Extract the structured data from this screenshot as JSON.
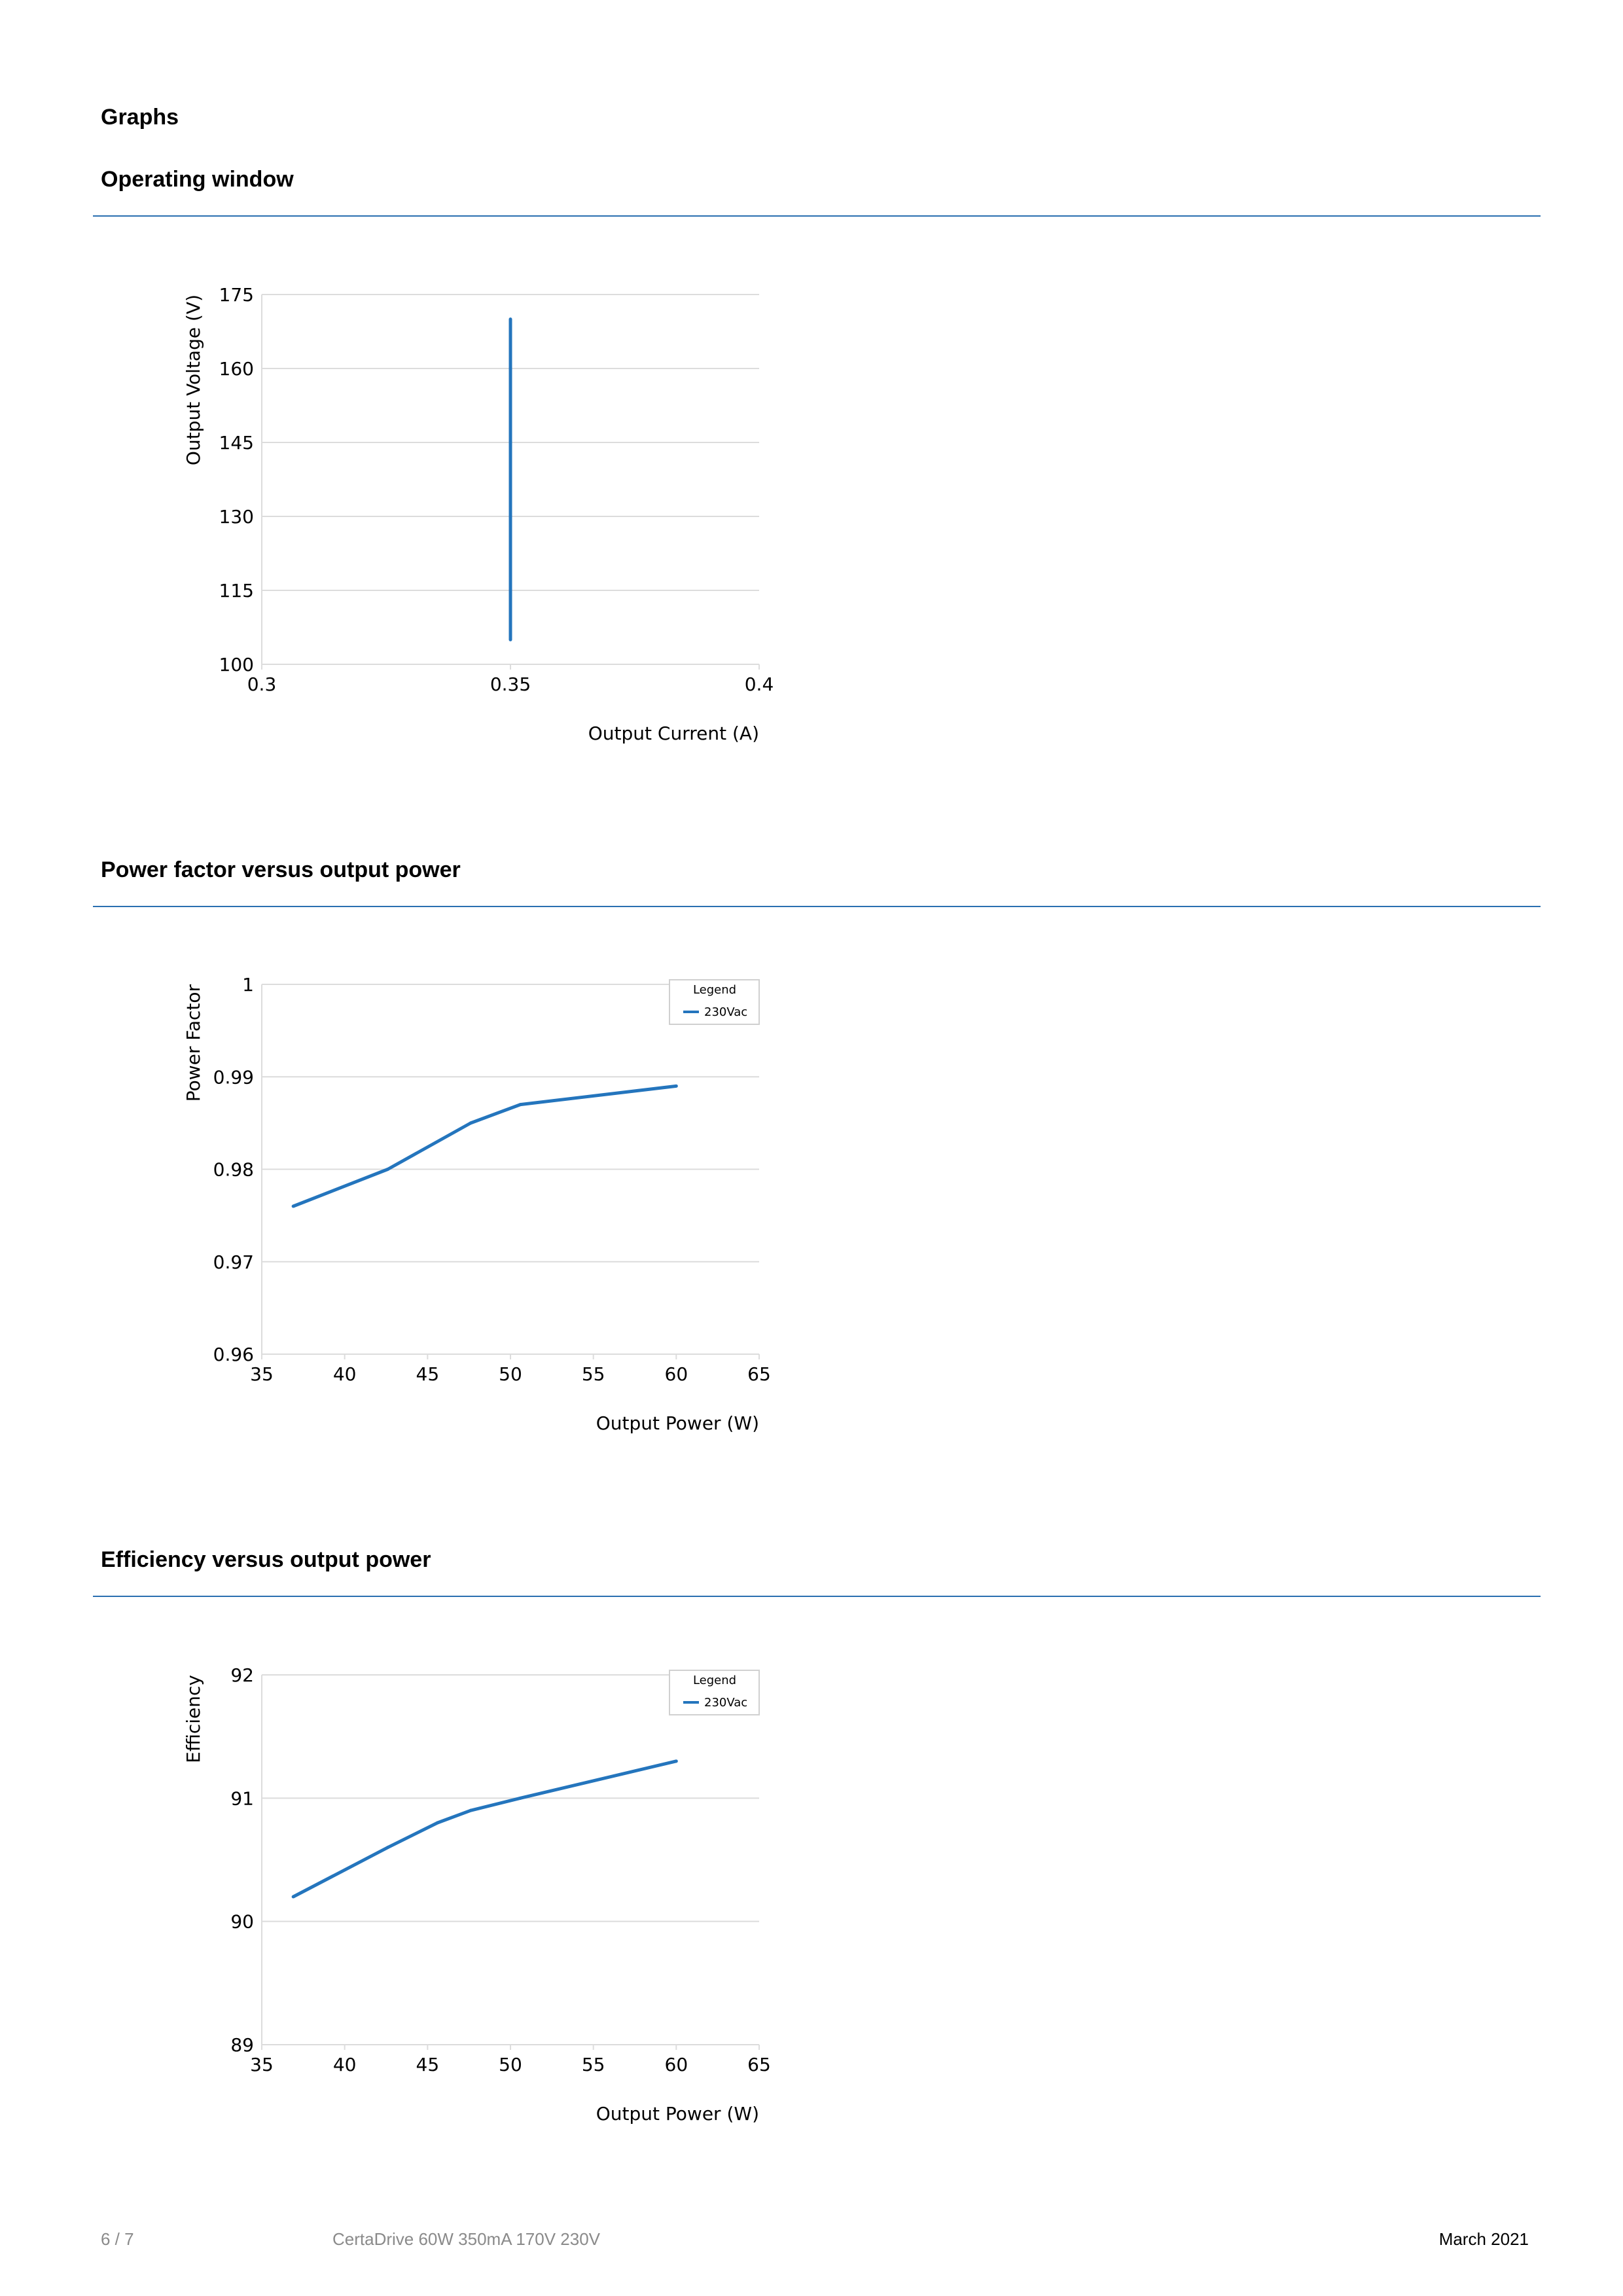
{
  "page": {
    "heading": "Graphs",
    "footer": {
      "page_number": "6 / 7",
      "product": "CertaDrive 60W 350mA 170V 230V",
      "date": "March 2021"
    }
  },
  "sections": [
    {
      "title": "Operating window"
    },
    {
      "title": "Power factor versus output power"
    },
    {
      "title": "Efficiency versus output power"
    }
  ],
  "colors": {
    "accent": "#2a6fb0",
    "series": "#2475bd",
    "grid": "#dcdcdc"
  },
  "chart_data": [
    {
      "type": "line",
      "xlabel": "Output Current (A)",
      "ylabel": "Output Voltage (V)",
      "xlim": [
        0.3,
        0.4
      ],
      "ylim": [
        100,
        175
      ],
      "xticks": [
        "0.3",
        "0.35",
        "0.4"
      ],
      "yticks": [
        "100",
        "115",
        "130",
        "145",
        "160",
        "175"
      ],
      "grid": true,
      "legend": null,
      "series": [
        {
          "x": [
            0.35,
            0.35
          ],
          "y": [
            105,
            170
          ]
        }
      ]
    },
    {
      "type": "line",
      "xlabel": "Output Power (W)",
      "ylabel": "Power Factor",
      "xlim": [
        35,
        65
      ],
      "ylim": [
        0.96,
        1
      ],
      "xticks": [
        "35",
        "40",
        "45",
        "50",
        "55",
        "60",
        "65"
      ],
      "yticks": [
        "0.96",
        "0.97",
        "0.98",
        "0.99",
        "1"
      ],
      "grid": true,
      "legend": {
        "title": "Legend",
        "position": "top-right"
      },
      "series": [
        {
          "name": "230Vac",
          "x": [
            36.9,
            42.6,
            47.6,
            50.6,
            60
          ],
          "y": [
            0.976,
            0.98,
            0.985,
            0.987,
            0.989
          ]
        }
      ]
    },
    {
      "type": "line",
      "xlabel": "Output Power (W)",
      "ylabel": "Efficiency",
      "xlim": [
        35,
        65
      ],
      "ylim": [
        89,
        92
      ],
      "xticks": [
        "35",
        "40",
        "45",
        "50",
        "55",
        "60",
        "65"
      ],
      "yticks": [
        "89",
        "90",
        "91",
        "92"
      ],
      "grid": true,
      "legend": {
        "title": "Legend",
        "position": "top-right"
      },
      "series": [
        {
          "name": "230Vac",
          "x": [
            36.9,
            42.6,
            45.6,
            47.6,
            50.6,
            60
          ],
          "y": [
            90.2,
            90.6,
            90.8,
            90.9,
            91.0,
            91.3
          ]
        }
      ]
    }
  ]
}
